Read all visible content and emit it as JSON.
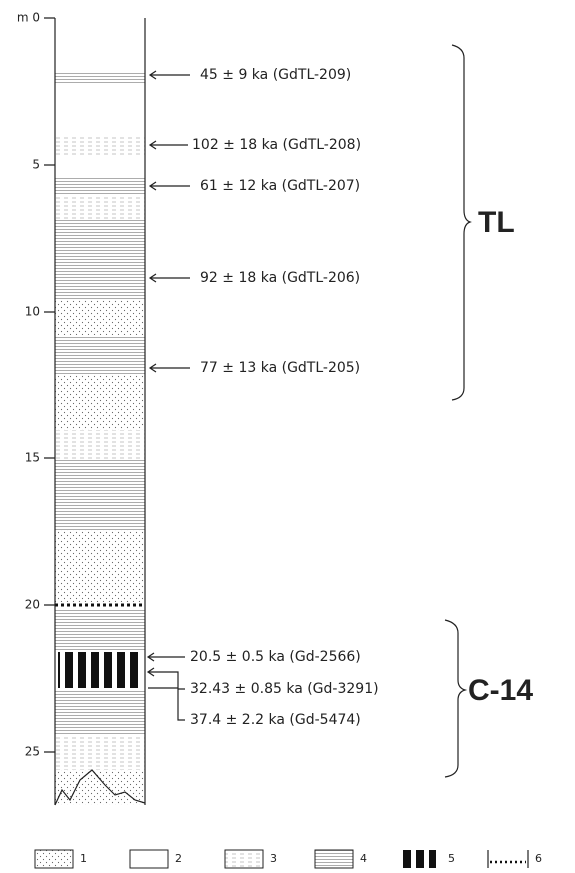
{
  "depth_axis": {
    "labels": [
      "m 0",
      "5",
      "10",
      "15",
      "20",
      "25"
    ]
  },
  "tl_dates": [
    "45 ± 9 ka (GdTL-209)",
    "102 ± 18 ka (GdTL-208)",
    "61 ± 12 ka (GdTL-207)",
    "92 ± 18 ka (GdTL-206)",
    "77 ± 13 ka (GdTL-205)"
  ],
  "tl_group": "TL",
  "c14_dates": [
    "20.5 ± 0.5 ka (Gd-2566)",
    "32.43 ± 0.85 ka (Gd-3291)",
    "37.4 ± 2.2 ka (Gd-5474)"
  ],
  "c14_group": "C-14",
  "legend": [
    "1",
    "2",
    "3",
    "4",
    "5",
    "6"
  ]
}
